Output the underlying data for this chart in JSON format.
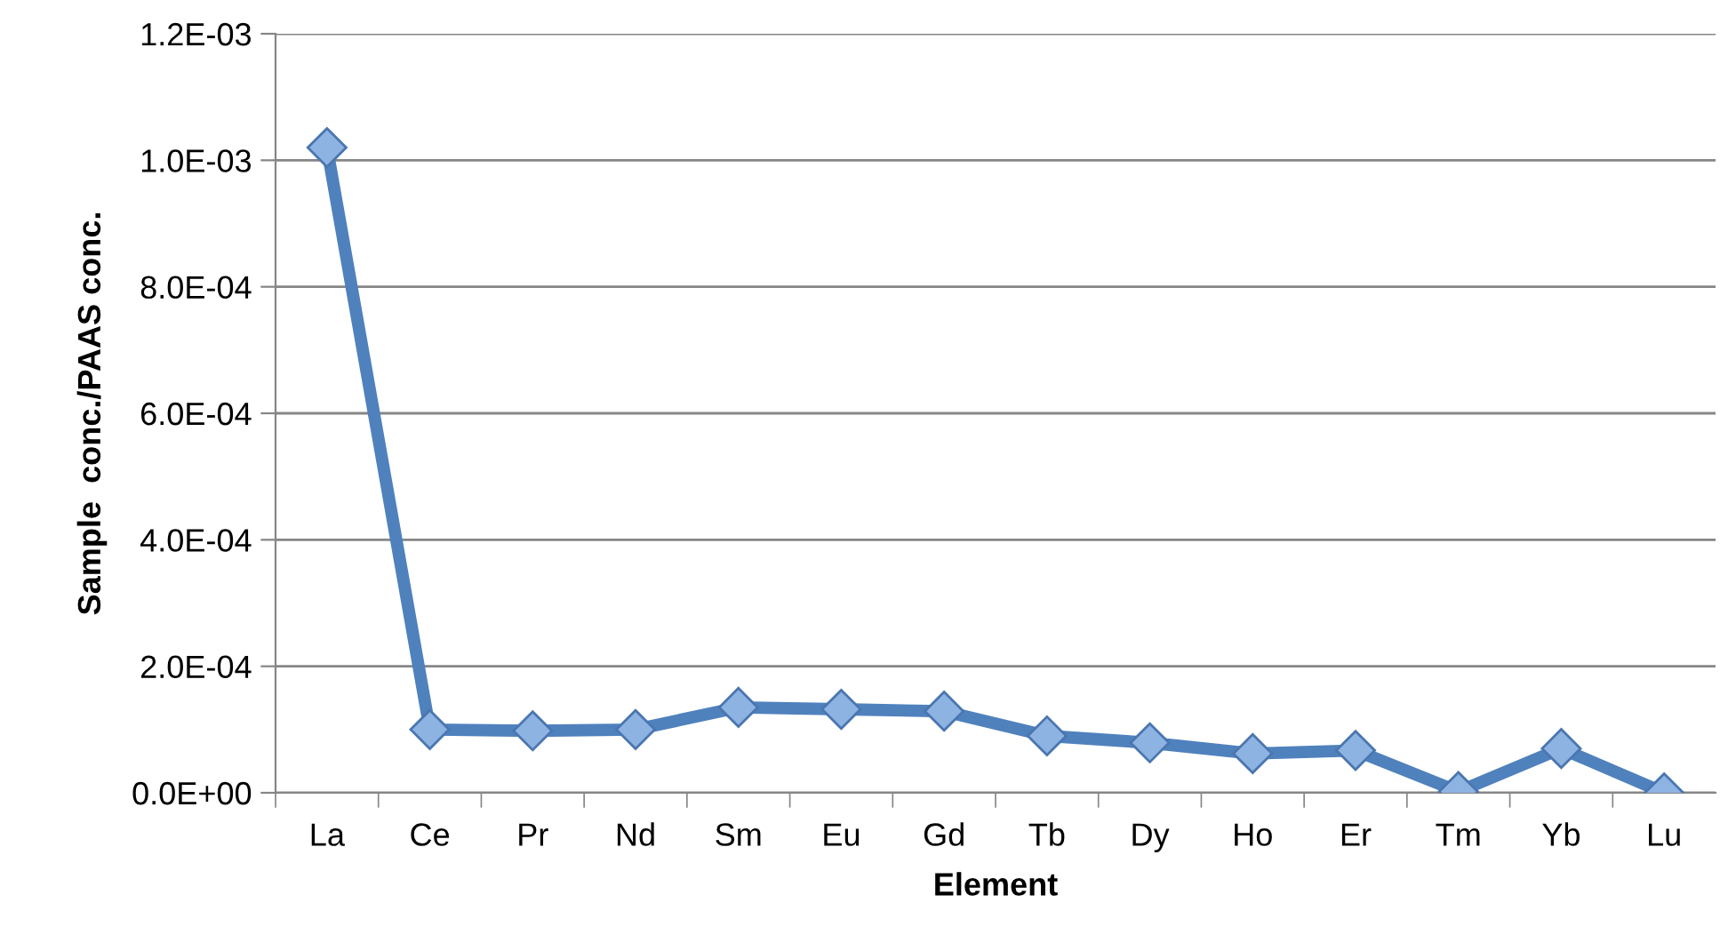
{
  "chart_data": {
    "type": "line",
    "xlabel": "Element",
    "ylabel": "Sample  conc./PAAS conc.",
    "categories": [
      "La",
      "Ce",
      "Pr",
      "Nd",
      "Sm",
      "Eu",
      "Gd",
      "Tb",
      "Dy",
      "Ho",
      "Er",
      "Tm",
      "Yb",
      "Lu"
    ],
    "series": [
      {
        "color": "#4f81bd",
        "values": [
          0.00102,
          0.0001,
          9.8e-05,
          0.0001,
          0.000135,
          0.000132,
          0.000129,
          9e-05,
          7.9e-05,
          6.2e-05,
          6.7e-05,
          2e-06,
          7e-05,
          0
        ]
      }
    ],
    "ylim": [
      0,
      0.0012
    ],
    "yticks": [
      {
        "value": 0,
        "label": "0.0E+00"
      },
      {
        "value": 0.0002,
        "label": "2.0E-04"
      },
      {
        "value": 0.0004,
        "label": "4.0E-04"
      },
      {
        "value": 0.0006,
        "label": "6.0E-04"
      },
      {
        "value": 0.0008,
        "label": "8.0E-04"
      },
      {
        "value": 0.001,
        "label": "1.0E-03"
      },
      {
        "value": 0.0012,
        "label": "1.2E-03"
      }
    ],
    "grid": "y",
    "marker": "diamond",
    "line_style": "solid"
  }
}
